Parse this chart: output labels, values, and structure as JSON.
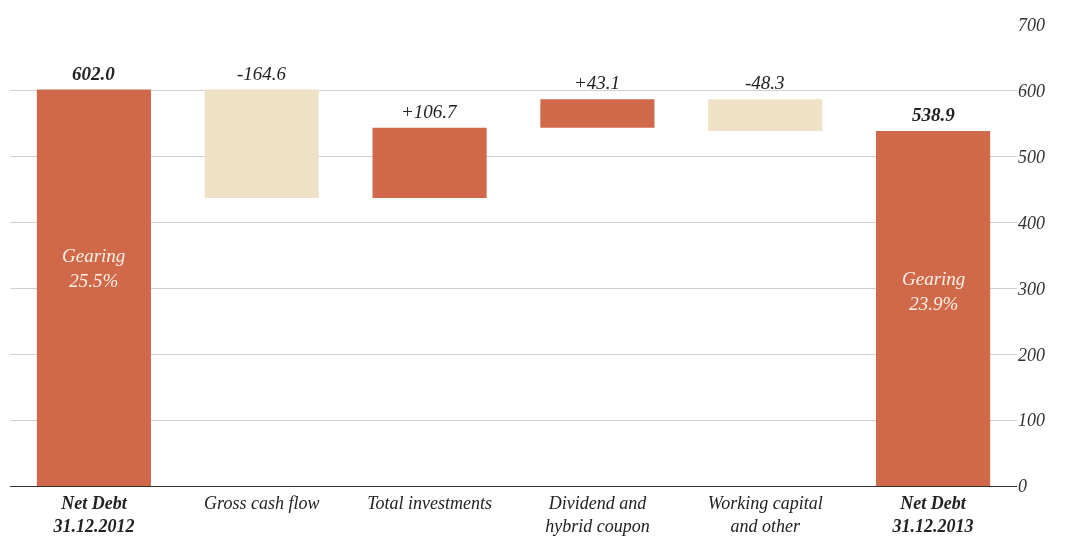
{
  "chart_data": {
    "type": "bar",
    "categories": [
      "Net Debt\n31.12.2012",
      "Gross cash flow",
      "Total investments",
      "Dividend and\nhybrid coupon",
      "Working capital\nand other",
      "Net Debt\n31.12.2013"
    ],
    "values": [
      602.0,
      -164.6,
      106.7,
      43.1,
      -48.3,
      538.9
    ],
    "base": [
      0,
      602.0,
      437.4,
      544.1,
      587.2,
      0
    ],
    "colors": [
      "#d0694a",
      "#efe1c5",
      "#d0694a",
      "#d0694a",
      "#efe1c5",
      "#d0694a"
    ],
    "value_labels": [
      "602.0",
      "-164.6",
      "+106.7",
      "+43.1",
      "-48.3",
      "538.9"
    ],
    "annotations": [
      "Gearing\n25.5%",
      "Gearing\n23.9%"
    ],
    "ylim": [
      0,
      700
    ],
    "yticks": [
      0,
      100,
      200,
      300,
      400,
      500,
      600,
      700
    ],
    "grid": "y"
  }
}
